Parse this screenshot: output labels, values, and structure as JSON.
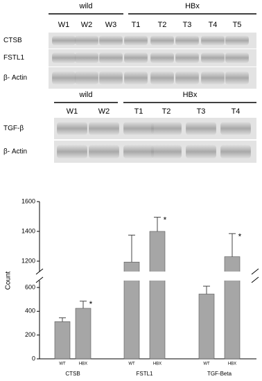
{
  "blots": [
    {
      "groups": [
        "wild",
        "HBx"
      ],
      "lanes": [
        "W1",
        "W2",
        "W3",
        "T1",
        "T2",
        "T3",
        "T4",
        "T5"
      ],
      "rows": [
        "CTSB",
        "FSTL1",
        "β- Actin"
      ]
    },
    {
      "groups": [
        "wild",
        "HBx"
      ],
      "lanes": [
        "W1",
        "W2",
        "T1",
        "T2",
        "T3",
        "T4"
      ],
      "rows": [
        "TGF-β",
        "β- Actin"
      ]
    }
  ],
  "chart_data": {
    "type": "bar",
    "ylabel": "Count",
    "categories": [
      "CTSB",
      "FSTL1",
      "TGF-Beta"
    ],
    "series": [
      {
        "name": "WT",
        "color": "#a6a6a6",
        "values": [
          313,
          1180,
          545
        ],
        "errors": [
          32,
          195,
          85
        ]
      },
      {
        "name": "HBX",
        "color": "#a6a6a6",
        "values": [
          425,
          1400,
          1230
        ],
        "errors": [
          60,
          95,
          155
        ],
        "significance": [
          "*",
          "*",
          "*"
        ]
      }
    ],
    "ylim": [
      0,
      1600
    ],
    "yticks": [
      0,
      200,
      400,
      600,
      1200,
      1400,
      1600
    ],
    "axis_break": [
      600,
      1200
    ]
  }
}
